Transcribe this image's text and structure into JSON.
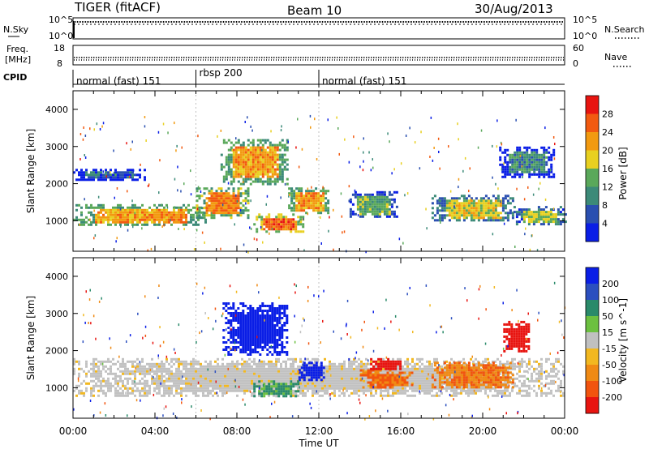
{
  "header": {
    "title": "TIGER (fitACF)",
    "beam": "Beam 10",
    "date": "30/Aug/2013"
  },
  "noise_panel": {
    "left_label": "N.Sky",
    "right_label": "N.Search",
    "ticks": [
      "10^5",
      "10^0"
    ]
  },
  "freq_panel": {
    "left_label_line1": "Freq.",
    "left_label_line2": "[MHz]",
    "left_ticks": [
      "18",
      "8"
    ],
    "right_label": "Nave",
    "right_ticks": [
      "60",
      "0"
    ]
  },
  "cpid": {
    "label": "CPID",
    "segments": [
      {
        "start_hour": 0,
        "end_hour": 6,
        "label": "normal (fast) 151"
      },
      {
        "start_hour": 6,
        "end_hour": 12,
        "label": "rbsp 200"
      },
      {
        "start_hour": 12,
        "end_hour": 24,
        "label": "normal (fast) 151"
      }
    ]
  },
  "colors": {
    "power_scale": [
      "#0a1ee6",
      "#2a4fb0",
      "#3c8a78",
      "#5aa85a",
      "#e8d020",
      "#f29a10",
      "#f25a10",
      "#e81410"
    ],
    "velocity_scale": [
      "#0a1ee6",
      "#2b4fbf",
      "#2a8a6a",
      "#6cc040",
      "#c0c0c0",
      "#f2b820",
      "#f08a14",
      "#f2540e",
      "#e81410"
    ],
    "ground_scatter": "#c2c2c2"
  },
  "chart_data": [
    {
      "type": "heatmap",
      "name": "power-panel",
      "ylabel": "Slant Range [km]",
      "x_range_hours": [
        0,
        24
      ],
      "ylim": [
        180,
        4500
      ],
      "y_ticks": [
        1000,
        2000,
        3000,
        4000
      ],
      "colorbar": {
        "label": "Power [dB]",
        "range": [
          0,
          32
        ],
        "ticks": [
          4,
          8,
          12,
          16,
          20,
          24,
          28
        ]
      },
      "echo_bands": [
        {
          "x": [
            0,
            6.5
          ],
          "range_km": [
            900,
            1450
          ],
          "value_db": 22
        },
        {
          "x": [
            6.0,
            8.5
          ],
          "range_km": [
            1100,
            1900
          ],
          "value_db": 24
        },
        {
          "x": [
            7.2,
            10.5
          ],
          "range_km": [
            2000,
            3200
          ],
          "value_db": 22
        },
        {
          "x": [
            8.8,
            11.2
          ],
          "range_km": [
            700,
            1200
          ],
          "value_db": 26
        },
        {
          "x": [
            10.5,
            12.5
          ],
          "range_km": [
            1200,
            1900
          ],
          "value_db": 22
        },
        {
          "x": [
            13.5,
            15.8
          ],
          "range_km": [
            1100,
            1800
          ],
          "value_db": 14
        },
        {
          "x": [
            17.5,
            21.5
          ],
          "range_km": [
            1000,
            1700
          ],
          "value_db": 18
        },
        {
          "x": [
            21.5,
            24
          ],
          "range_km": [
            900,
            1400
          ],
          "value_db": 16
        },
        {
          "x": [
            0,
            3.5
          ],
          "range_km": [
            2100,
            2400
          ],
          "value_db": 6
        },
        {
          "x": [
            20.8,
            23.5
          ],
          "range_km": [
            2200,
            3000
          ],
          "value_db": 10
        }
      ]
    },
    {
      "type": "heatmap",
      "name": "velocity-panel",
      "ylabel": "Slant Range [km]",
      "xlabel": "Time UT",
      "x_tick_labels": [
        "00:00",
        "04:00",
        "08:00",
        "12:00",
        "16:00",
        "20:00",
        "00:00"
      ],
      "x_tick_hours": [
        0,
        4,
        8,
        12,
        16,
        20,
        24
      ],
      "x_range_hours": [
        0,
        24
      ],
      "ylim": [
        180,
        4500
      ],
      "y_ticks": [
        1000,
        2000,
        3000,
        4000
      ],
      "colorbar": {
        "label": "Velocity [m s^-1]",
        "tick_labels": [
          "200",
          "100",
          "50",
          "15",
          "-15",
          "-50",
          "-100",
          "-200"
        ]
      },
      "echo_bands": [
        {
          "x": [
            0,
            24
          ],
          "range_km": [
            800,
            1800
          ],
          "value_ms": 0,
          "ground_scatter": true
        },
        {
          "x": [
            7.3,
            10.5
          ],
          "range_km": [
            1900,
            3300
          ],
          "value_ms": 180
        },
        {
          "x": [
            11.0,
            12.2
          ],
          "range_km": [
            1200,
            1700
          ],
          "value_ms": 200
        },
        {
          "x": [
            14.0,
            16.5
          ],
          "range_km": [
            1000,
            1500
          ],
          "value_ms": -110
        },
        {
          "x": [
            14.5,
            16.0
          ],
          "range_km": [
            1500,
            1800
          ],
          "value_ms": -200
        },
        {
          "x": [
            17.5,
            21.5
          ],
          "range_km": [
            1000,
            1700
          ],
          "value_ms": -90
        },
        {
          "x": [
            21.0,
            22.3
          ],
          "range_km": [
            2000,
            2800
          ],
          "value_ms": -200
        },
        {
          "x": [
            8.8,
            11.0
          ],
          "range_km": [
            800,
            1200
          ],
          "value_ms": 40
        }
      ]
    }
  ]
}
